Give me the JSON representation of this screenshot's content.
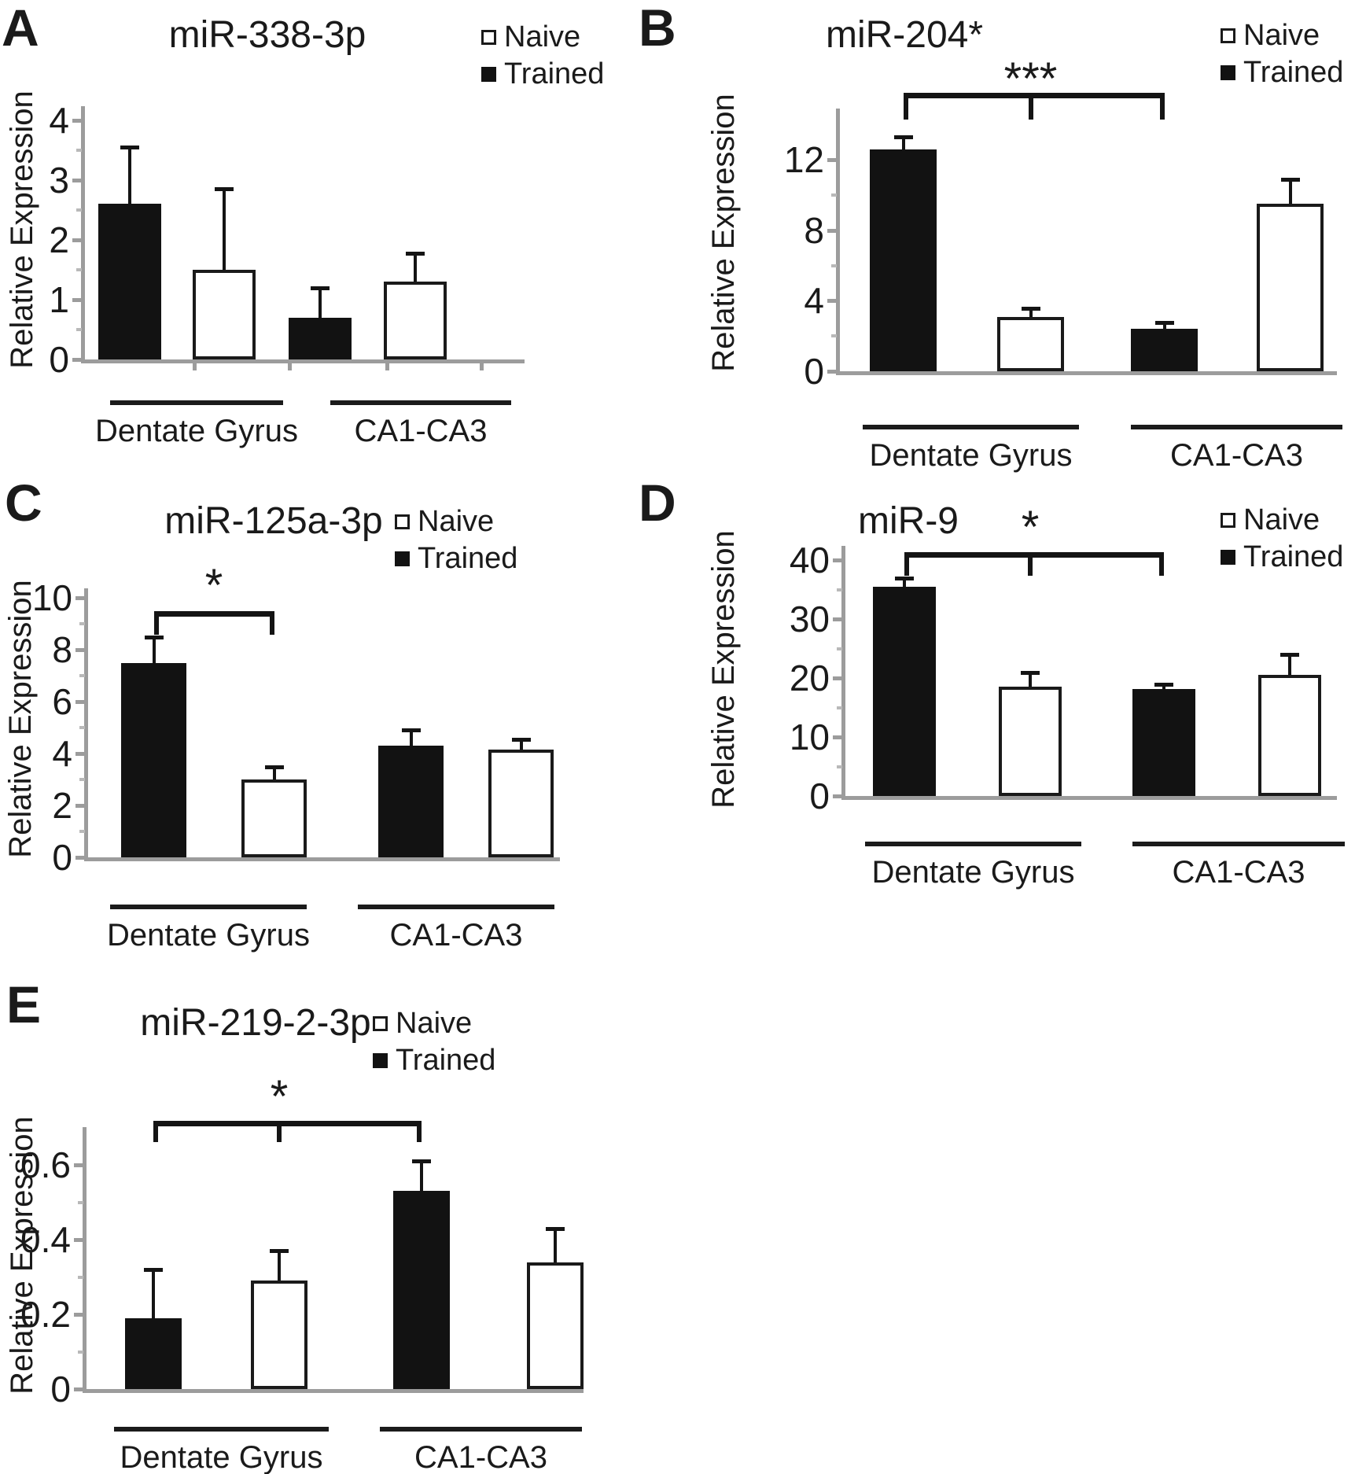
{
  "shared": {
    "ylabel": "Relative Expression",
    "legend": [
      {
        "key": "naive",
        "label": "Naive",
        "swatch": "open-square"
      },
      {
        "key": "trained",
        "label": "Trained",
        "swatch": "filled-square"
      }
    ],
    "group_labels": [
      "Dentate Gyrus",
      "CA1-CA3"
    ],
    "colors": {
      "trained_fill": "#121212",
      "naive_fill": "#ffffff",
      "bar_border": "#1a1a1a",
      "axis": "#9c9c9c",
      "ink": "#1a1a1a",
      "background": "#ffffff"
    }
  },
  "chart_data": [
    {
      "panel": "A",
      "type": "bar",
      "title": "miR-338-3p",
      "ylabel": "Relative Expression",
      "xlabel": "",
      "ylim": [
        0,
        4
      ],
      "yticks": [
        0,
        1,
        2,
        3,
        4
      ],
      "grid": false,
      "categories": [
        "Dentate Gyrus",
        "CA1-CA3"
      ],
      "series": [
        {
          "name": "Trained",
          "values": [
            2.6,
            0.7
          ],
          "errors": [
            0.95,
            0.5
          ]
        },
        {
          "name": "Naive",
          "values": [
            1.5,
            1.3
          ],
          "errors": [
            1.35,
            0.48
          ]
        }
      ],
      "significance": null,
      "legend_position": "top-right"
    },
    {
      "panel": "B",
      "type": "bar",
      "title": "miR-204*",
      "ylabel": "Relative Expression",
      "xlabel": "",
      "ylim": [
        0,
        12
      ],
      "yticks": [
        0,
        4,
        8,
        12
      ],
      "grid": false,
      "categories": [
        "Dentate Gyrus",
        "CA1-CA3"
      ],
      "series": [
        {
          "name": "Trained",
          "values": [
            12.6,
            2.4
          ],
          "errors": [
            0.7,
            0.35
          ]
        },
        {
          "name": "Naive",
          "values": [
            3.1,
            9.5
          ],
          "errors": [
            0.45,
            1.4
          ]
        }
      ],
      "significance": {
        "label": "***",
        "from_bar": 0,
        "mid_bar": 1,
        "to_bar": 2
      },
      "legend_position": "top-right"
    },
    {
      "panel": "C",
      "type": "bar",
      "title": "miR-125a-3p",
      "ylabel": "Relative Expression",
      "xlabel": "",
      "ylim": [
        0,
        10
      ],
      "yticks": [
        0,
        2,
        4,
        6,
        8,
        10
      ],
      "grid": false,
      "categories": [
        "Dentate Gyrus",
        "CA1-CA3"
      ],
      "series": [
        {
          "name": "Trained",
          "values": [
            7.5,
            4.3
          ],
          "errors": [
            1.0,
            0.6
          ]
        },
        {
          "name": "Naive",
          "values": [
            3.0,
            4.15
          ],
          "errors": [
            0.5,
            0.4
          ]
        }
      ],
      "significance": {
        "label": "*",
        "from_bar": 0,
        "mid_bar": null,
        "to_bar": 1
      },
      "legend_position": "top-right"
    },
    {
      "panel": "D",
      "type": "bar",
      "title": "miR-9",
      "ylabel": "Relative Expression",
      "xlabel": "",
      "ylim": [
        0,
        40
      ],
      "yticks": [
        0,
        10,
        20,
        30,
        40
      ],
      "grid": false,
      "categories": [
        "Dentate Gyrus",
        "CA1-CA3"
      ],
      "series": [
        {
          "name": "Trained",
          "values": [
            35.5,
            18.2
          ],
          "errors": [
            1.5,
            0.7
          ]
        },
        {
          "name": "Naive",
          "values": [
            18.5,
            20.5
          ],
          "errors": [
            2.5,
            3.5
          ]
        }
      ],
      "significance": {
        "label": "*",
        "from_bar": 0,
        "mid_bar": 1,
        "to_bar": 2
      },
      "legend_position": "top-right"
    },
    {
      "panel": "E",
      "type": "bar",
      "title": "miR-219-2-3p",
      "ylabel": "Relative Expression",
      "xlabel": "",
      "ylim": [
        0,
        0.6
      ],
      "yticks": [
        0,
        0.2,
        0.4,
        0.6
      ],
      "grid": false,
      "categories": [
        "Dentate Gyrus",
        "CA1-CA3"
      ],
      "series": [
        {
          "name": "Trained",
          "values": [
            0.19,
            0.53
          ],
          "errors": [
            0.13,
            0.08
          ]
        },
        {
          "name": "Naive",
          "values": [
            0.29,
            0.34
          ],
          "errors": [
            0.08,
            0.09
          ]
        }
      ],
      "significance": {
        "label": "*",
        "from_bar": 0,
        "mid_bar": 1,
        "to_bar": 2
      },
      "legend_position": "top-right"
    }
  ]
}
